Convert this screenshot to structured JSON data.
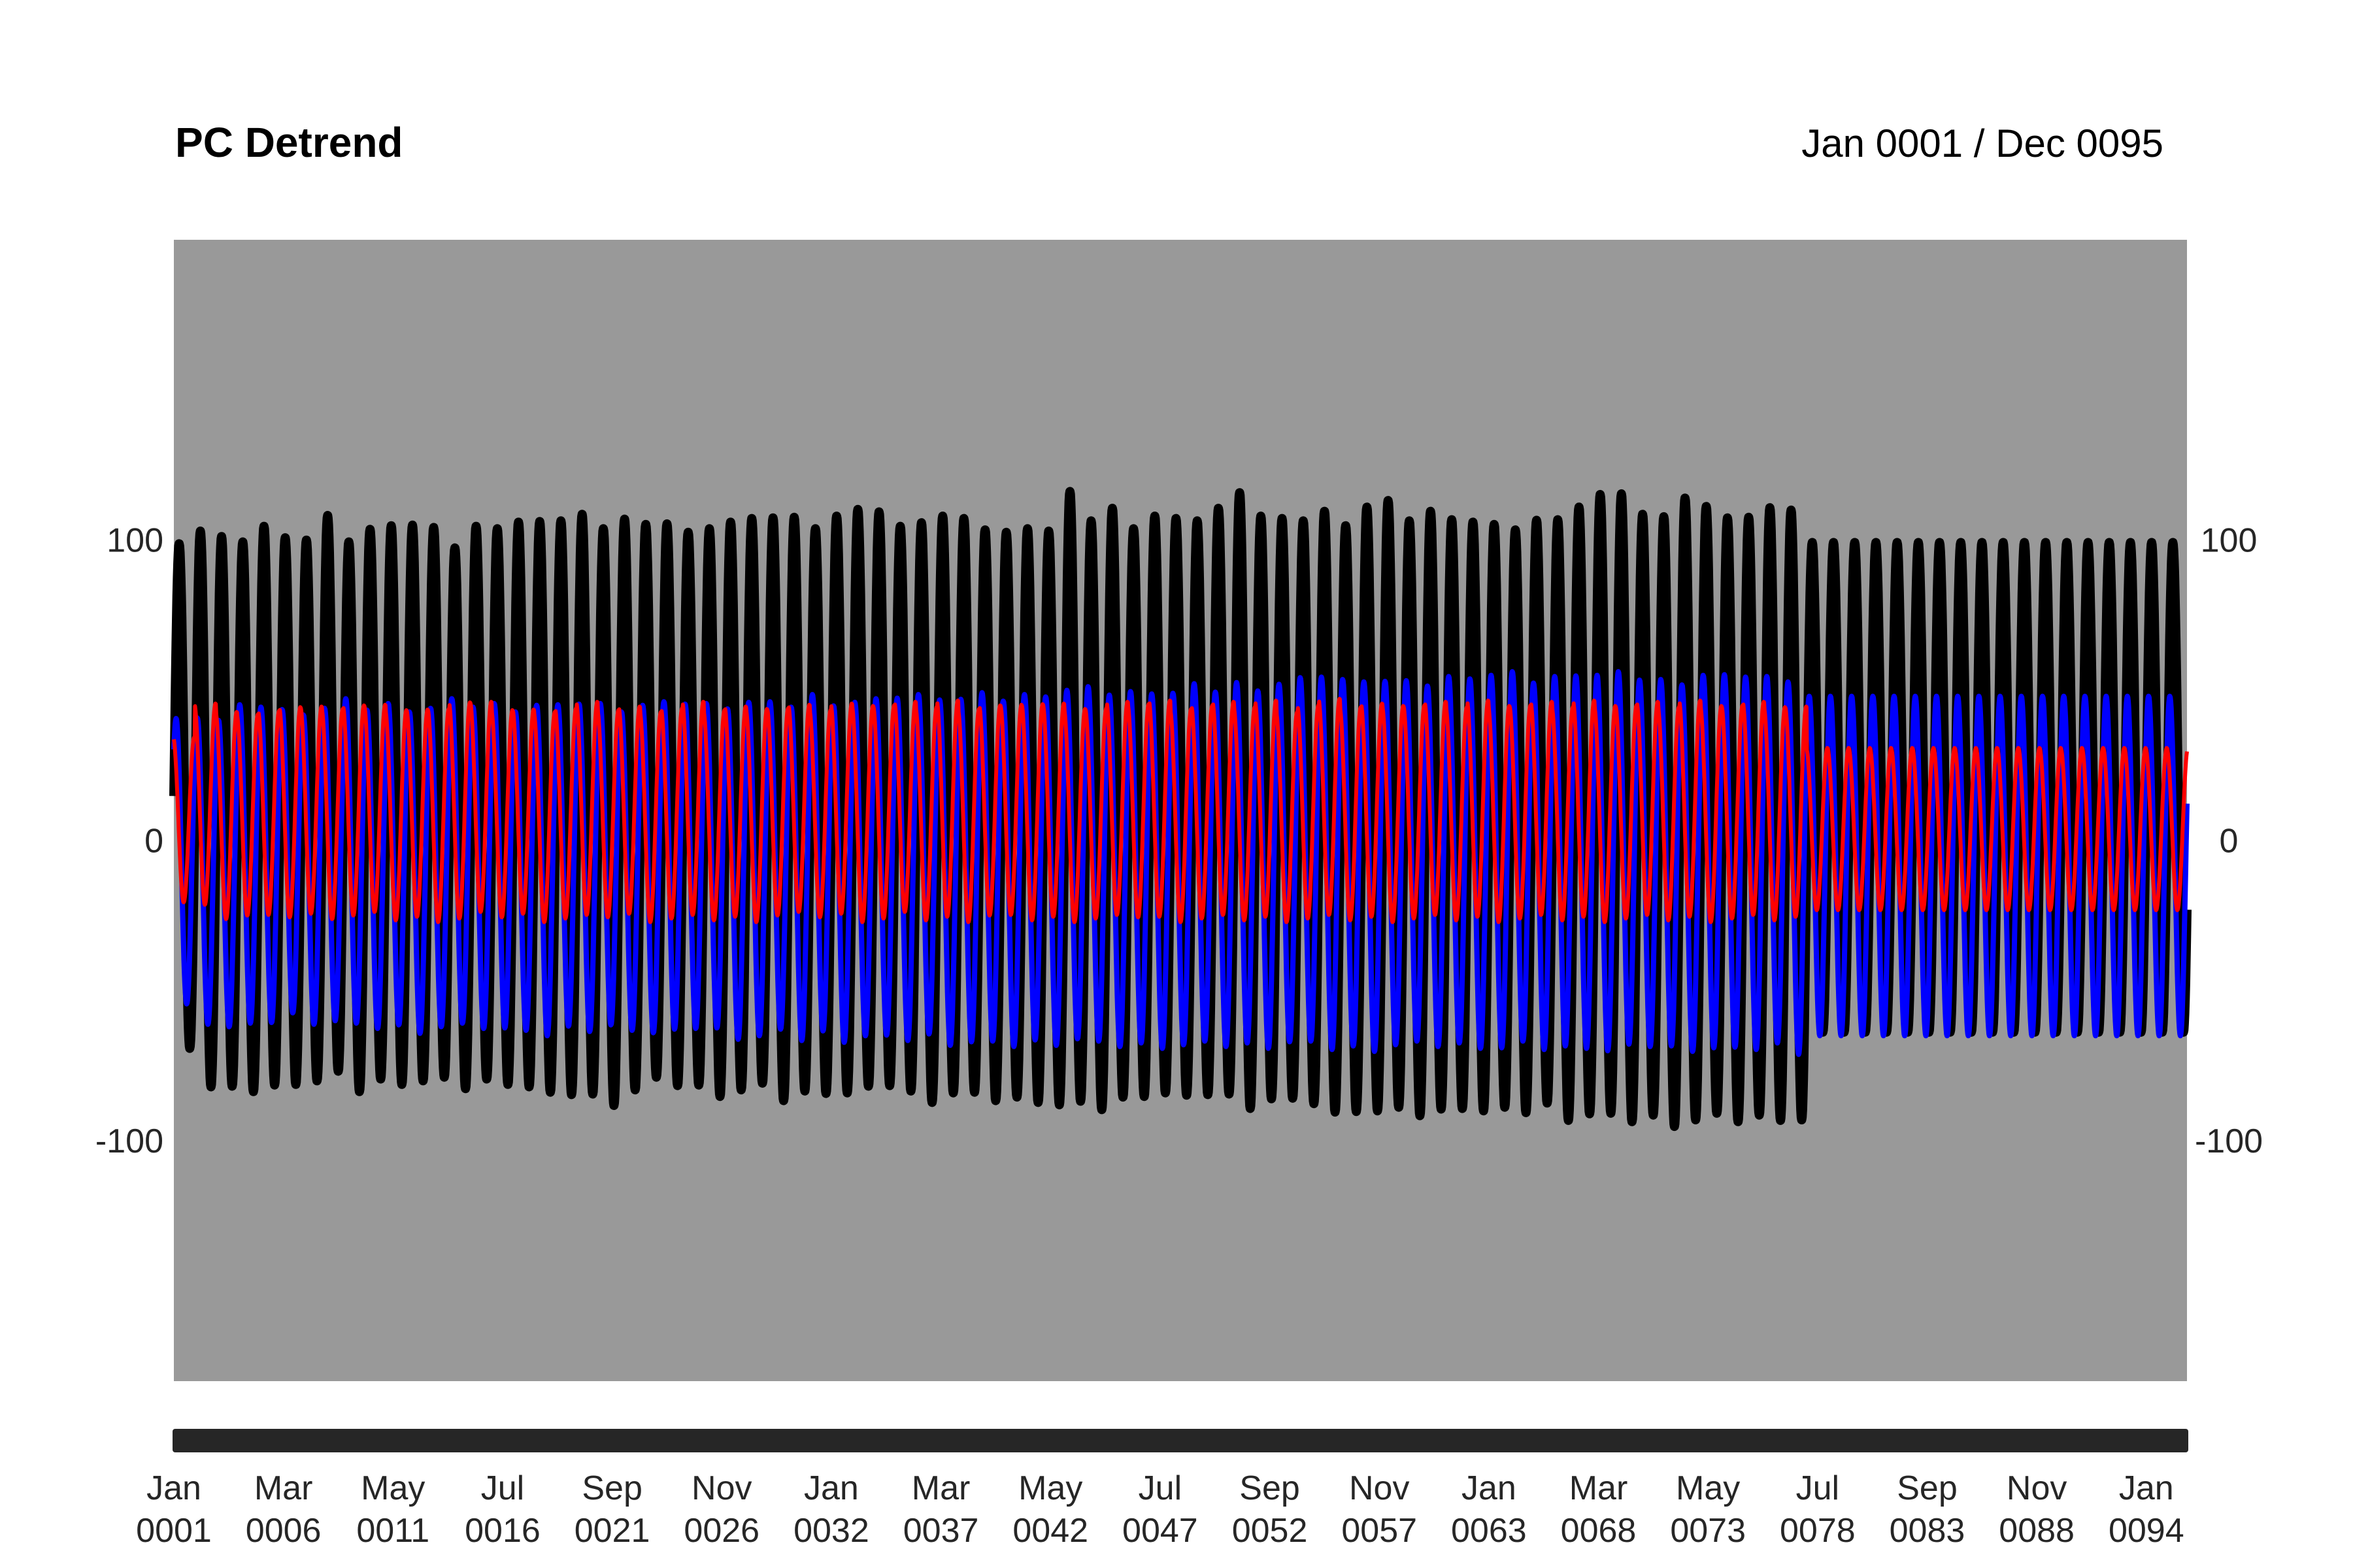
{
  "chart_data": {
    "type": "line",
    "title": "PC Detrend",
    "date_range_label": "Jan 0001 / Dec 0095",
    "xlabel": "",
    "ylabel": "",
    "ylim": [
      -180,
      200
    ],
    "xlim": [
      "0001-01",
      "0095-12"
    ],
    "y_ticks": [
      {
        "value": 100,
        "label": "100"
      },
      {
        "value": 0,
        "label": "0"
      },
      {
        "value": -100,
        "label": "-100"
      }
    ],
    "x_ticks": [
      {
        "date": "0001-01",
        "month": "Jan",
        "year": "0001"
      },
      {
        "date": "0006-03",
        "month": "Mar",
        "year": "0006"
      },
      {
        "date": "0011-05",
        "month": "May",
        "year": "0011"
      },
      {
        "date": "0016-07",
        "month": "Jul",
        "year": "0016"
      },
      {
        "date": "0021-09",
        "month": "Sep",
        "year": "0021"
      },
      {
        "date": "0026-11",
        "month": "Nov",
        "year": "0026"
      },
      {
        "date": "0032-01",
        "month": "Jan",
        "year": "0032"
      },
      {
        "date": "0037-03",
        "month": "Mar",
        "year": "0037"
      },
      {
        "date": "0042-05",
        "month": "May",
        "year": "0042"
      },
      {
        "date": "0047-07",
        "month": "Jul",
        "year": "0047"
      },
      {
        "date": "0052-09",
        "month": "Sep",
        "year": "0052"
      },
      {
        "date": "0057-11",
        "month": "Nov",
        "year": "0057"
      },
      {
        "date": "0063-01",
        "month": "Jan",
        "year": "0063"
      },
      {
        "date": "0068-03",
        "month": "Mar",
        "year": "0068"
      },
      {
        "date": "0073-05",
        "month": "May",
        "year": "0073"
      },
      {
        "date": "0078-07",
        "month": "Jul",
        "year": "0078"
      },
      {
        "date": "0083-09",
        "month": "Sep",
        "year": "0083"
      },
      {
        "date": "0088-11",
        "month": "Nov",
        "year": "0088"
      },
      {
        "date": "0094-01",
        "month": "Jan",
        "year": "0094"
      }
    ],
    "background_color": "#999999",
    "grid": false,
    "legend": "none",
    "series": [
      {
        "color": "#000000",
        "cycle": "annual",
        "annual_max": [
          100,
          103,
          100,
          100,
          104,
          102,
          100,
          107,
          100,
          103,
          106,
          105,
          103,
          98,
          104,
          105,
          106,
          105,
          107,
          108,
          105,
          107,
          104,
          106,
          102,
          105,
          106,
          106,
          108,
          107,
          105,
          108,
          109,
          110,
          104,
          107,
          108,
          106,
          104,
          102,
          105,
          103,
          115,
          107,
          110,
          105,
          108,
          106,
          107,
          110,
          117,
          108,
          106,
          107,
          109,
          106,
          111,
          112,
          107,
          109,
          108,
          106,
          104,
          104,
          106,
          108,
          111,
          114,
          116,
          108,
          109,
          114,
          110,
          108,
          107,
          112,
          110,
          98
        ],
        "annual_min": [
          -68,
          -82,
          -83,
          -83,
          -82,
          -80,
          -80,
          -78,
          -83,
          -80,
          -80,
          -80,
          -80,
          -82,
          -80,
          -80,
          -82,
          -85,
          -84,
          -85,
          -87,
          -83,
          -80,
          -81,
          -82,
          -84,
          -83,
          -82,
          -86,
          -84,
          -83,
          -84,
          -83,
          -81,
          -84,
          -86,
          -84,
          -85,
          -86,
          -86,
          -86,
          -88,
          -88,
          -89,
          -86,
          -84,
          -84,
          -86,
          -84,
          -85,
          -88,
          -86,
          -87,
          -87,
          -91,
          -89,
          -90,
          -90,
          -91,
          -90,
          -88,
          -90,
          -90,
          -90,
          -88,
          -92,
          -91,
          -92,
          -93,
          -92,
          -94,
          -93,
          -92,
          -93,
          -92,
          -92,
          -93,
          -65
        ]
      },
      {
        "color": "#0000ff",
        "cycle": "annual",
        "annual_max": [
          40,
          42,
          40,
          44,
          45,
          43,
          43,
          44,
          46,
          44,
          45,
          44,
          44,
          46,
          45,
          45,
          44,
          45,
          44,
          46,
          45,
          44,
          45,
          45,
          46,
          45,
          45,
          46,
          45,
          45,
          48,
          46,
          46,
          46,
          48,
          48,
          48,
          47,
          48,
          47,
          48,
          49,
          50,
          50,
          49,
          49,
          50,
          49,
          51,
          50,
          52,
          51,
          52,
          53,
          55,
          53,
          54,
          53,
          52,
          52,
          54,
          55,
          55,
          55,
          53,
          54,
          56,
          55,
          55,
          54,
          53,
          53,
          55,
          54,
          55,
          54,
          54,
          48
        ],
        "annual_min": [
          -55,
          -60,
          -62,
          -62,
          -60,
          -58,
          -60,
          -60,
          -62,
          -62,
          -62,
          -63,
          -62,
          -62,
          -62,
          -63,
          -62,
          -65,
          -63,
          -63,
          -62,
          -62,
          -64,
          -64,
          -62,
          -63,
          -65,
          -65,
          -64,
          -66,
          -64,
          -66,
          -65,
          -66,
          -66,
          -65,
          -67,
          -67,
          -68,
          -68,
          -67,
          -67,
          -66,
          -68,
          -68,
          -68,
          -68,
          -68,
          -68,
          -68,
          -68,
          -68,
          -67,
          -68,
          -69,
          -69,
          -69,
          -68,
          -68,
          -68,
          -68,
          -68,
          -69,
          -68,
          -69,
          -69,
          -68,
          -70,
          -69,
          -68,
          -69,
          -69,
          -69,
          -70,
          -69,
          -68,
          -70,
          -65
        ]
      },
      {
        "color": "#ff0000",
        "cycle": "annual",
        "annual_max": [
          35,
          45,
          44,
          42,
          42,
          45,
          44,
          45,
          45,
          44,
          44,
          43,
          45,
          46,
          45,
          44,
          43,
          44,
          44,
          45,
          44,
          44,
          44,
          44,
          45,
          44,
          44,
          45,
          44,
          44,
          44,
          45,
          46,
          45,
          45,
          45,
          46,
          45,
          45,
          44,
          46,
          45,
          45,
          44,
          45,
          46,
          46,
          45,
          45,
          45,
          45,
          46,
          44,
          45,
          46,
          45,
          45,
          46,
          45,
          45,
          45,
          46,
          46,
          45,
          45,
          45,
          46,
          46,
          45,
          45,
          45,
          46,
          46,
          45,
          45,
          45,
          44,
          32
        ],
        "annual_min": [
          -20,
          -22,
          -25,
          -25,
          -26,
          -25,
          -25,
          -25,
          -25,
          -25,
          -26,
          -26,
          -26,
          -26,
          -25,
          -25,
          -25,
          -26,
          -26,
          -26,
          -25,
          -25,
          -26,
          -26,
          -26,
          -26,
          -26,
          -26,
          -25,
          -25,
          -25,
          -25,
          -26,
          -26,
          -25,
          -26,
          -26,
          -26,
          -25,
          -26,
          -26,
          -26,
          -26,
          -26,
          -26,
          -25,
          -26,
          -26,
          -26,
          -26,
          -26,
          -26,
          -26,
          -26,
          -26,
          -26,
          -26,
          -26,
          -26,
          -26,
          -26,
          -26,
          -26,
          -26,
          -26,
          -26,
          -26,
          -26,
          -26,
          -26,
          -26,
          -26,
          -26,
          -26,
          -26,
          -26,
          -26,
          -22
        ]
      }
    ]
  }
}
